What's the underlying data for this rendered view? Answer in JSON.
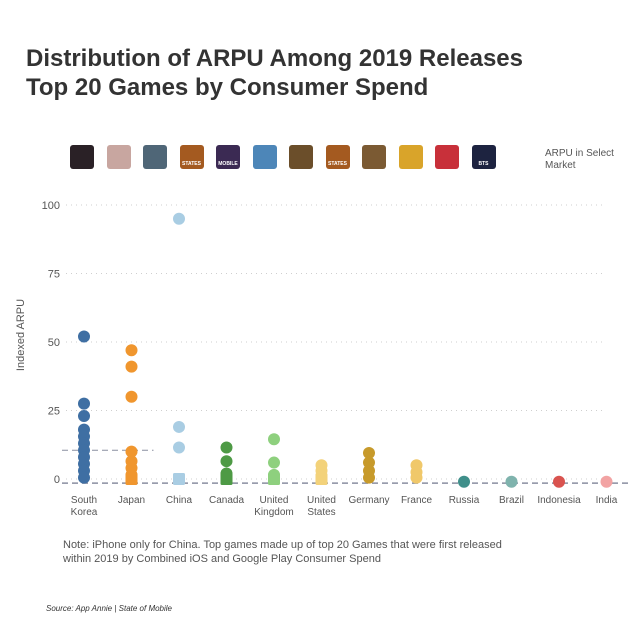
{
  "header": {
    "title_line1": "Distribution of ARPU Among 2019 Releases",
    "title_line2": "Top 20 Games by Consumer Spend"
  },
  "legend": {
    "label_line1": "ARPU in Select",
    "label_line2": "Market",
    "icons": [
      {
        "name": "game-icon-1",
        "label": "",
        "color": "#2a2126"
      },
      {
        "name": "game-icon-2",
        "label": "",
        "color": "#c8a6a0"
      },
      {
        "name": "game-icon-3",
        "label": "",
        "color": "#4f6677"
      },
      {
        "name": "game-icon-4",
        "label": "STATES",
        "color": "#a45a20"
      },
      {
        "name": "game-icon-5",
        "label": "MOBILE",
        "color": "#3b2a53"
      },
      {
        "name": "game-icon-6",
        "label": "",
        "color": "#4d86b8"
      },
      {
        "name": "game-icon-7",
        "label": "",
        "color": "#6b4e2a"
      },
      {
        "name": "game-icon-8",
        "label": "STATES",
        "color": "#a45a20"
      },
      {
        "name": "game-icon-9",
        "label": "",
        "color": "#7b5a33"
      },
      {
        "name": "game-icon-10",
        "label": "",
        "color": "#d9a42a"
      },
      {
        "name": "game-icon-11",
        "label": "",
        "color": "#c8303a"
      },
      {
        "name": "game-icon-12",
        "label": "BTS",
        "color": "#1d2340"
      }
    ]
  },
  "chart_data": {
    "type": "scatter",
    "title": "Distribution of ARPU Among 2019 Releases",
    "subtitle": "Top 20 Games by Consumer Spend",
    "xlabel": "",
    "ylabel": "Indexed ARPU",
    "ylim": [
      0,
      100
    ],
    "yticks": [
      0,
      25,
      50,
      75,
      100
    ],
    "grid": true,
    "legend": "top-right",
    "categories": [
      "South Korea",
      "Japan",
      "China",
      "Canada",
      "United Kingdom",
      "United States",
      "Germany",
      "France",
      "Russia",
      "Brazil",
      "Indonesia",
      "India"
    ],
    "category_labels": [
      [
        "South",
        "Korea"
      ],
      [
        "Japan"
      ],
      [
        "China"
      ],
      [
        "Canada"
      ],
      [
        "United",
        "Kingdom"
      ],
      [
        "United",
        "States"
      ],
      [
        "Germany"
      ],
      [
        "France"
      ],
      [
        "Russia"
      ],
      [
        "Brazil"
      ],
      [
        "Indonesia"
      ],
      [
        "India"
      ]
    ],
    "colors": [
      "#3f6fa3",
      "#f0962e",
      "#a9cde3",
      "#4e9a45",
      "#8ed07e",
      "#f3d27a",
      "#c79a2b",
      "#f0c86a",
      "#3f8f8a",
      "#7fb3ad",
      "#d9534f",
      "#f2a3a3"
    ],
    "series": [
      {
        "name": "South Korea",
        "values": [
          52,
          27.5,
          23,
          18,
          15.5,
          13,
          10.5,
          8,
          5.5,
          3,
          0.5
        ]
      },
      {
        "name": "Japan",
        "values": [
          47,
          41,
          30,
          10,
          6.5,
          4,
          1.5,
          0
        ]
      },
      {
        "name": "China",
        "values": [
          95,
          19,
          11.5,
          0
        ]
      },
      {
        "name": "Canada",
        "values": [
          11.5,
          6.5,
          2,
          0
        ]
      },
      {
        "name": "United Kingdom",
        "values": [
          14.5,
          6,
          1.5,
          0
        ]
      },
      {
        "name": "United States",
        "values": [
          5,
          3,
          1,
          0
        ]
      },
      {
        "name": "Germany",
        "values": [
          9.5,
          6,
          3,
          0.5
        ]
      },
      {
        "name": "France",
        "values": [
          5,
          2.5,
          0.5
        ]
      },
      {
        "name": "Russia",
        "values": [
          -1
        ]
      },
      {
        "name": "Brazil",
        "values": [
          -1
        ]
      },
      {
        "name": "Indonesia",
        "values": [
          -1
        ]
      },
      {
        "name": "India",
        "values": [
          -1
        ]
      }
    ],
    "reference_lines": [
      {
        "name": "South Korea average",
        "value": 10.5,
        "from": 0,
        "to": 1
      },
      {
        "name": "overall baseline",
        "value": -1.5,
        "from": 0,
        "to": 11
      }
    ]
  },
  "footer": {
    "note_line1": "Note: iPhone only for China. Top games made up of top 20 Games that were first released",
    "note_line2": "within 2019 by Combined iOS and Google Play Consumer Spend",
    "source": "Source: App Annie | State of Mobile"
  }
}
